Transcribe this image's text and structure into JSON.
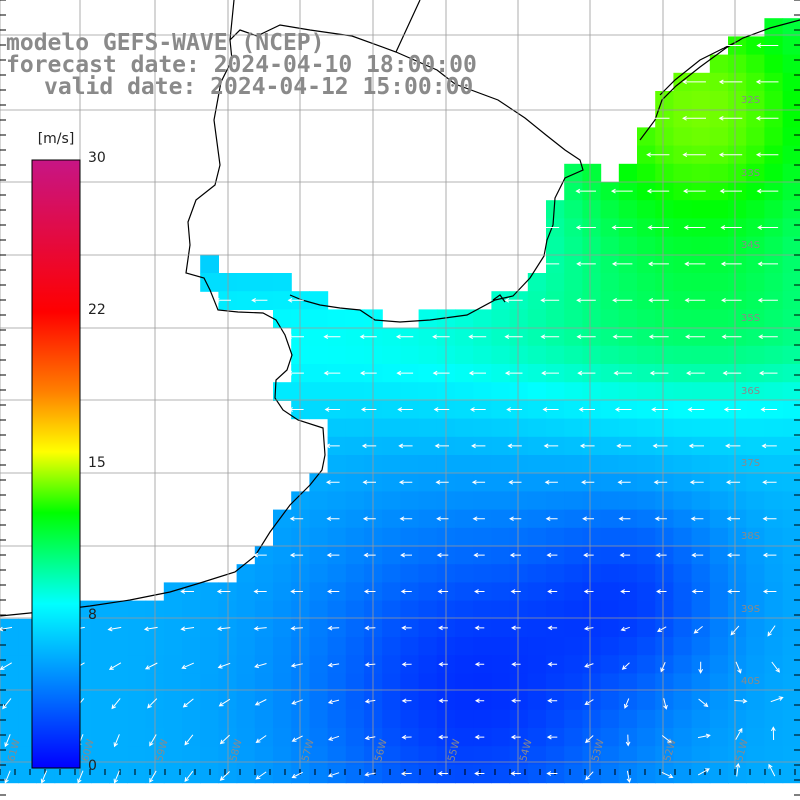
{
  "title": {
    "line1": "modelo GEFS-WAVE (NCEP)",
    "line2": "forecast date: 2024-04-10 18:00:00",
    "line3": "valid date: 2024-04-12 15:00:00"
  },
  "colorbar": {
    "unit": "[m/s]",
    "ticks": [
      "30",
      "22",
      "15",
      "8",
      "0"
    ],
    "tick_values": [
      30,
      22,
      15,
      8,
      0
    ],
    "range": [
      0,
      30
    ],
    "colors": [
      "#0000ff",
      "#00ffff",
      "#00ff00",
      "#ffff00",
      "#ff7f00",
      "#ff0000",
      "#c71585"
    ]
  },
  "map": {
    "lat_labels": [
      "32S",
      "33S",
      "34S",
      "35S",
      "36S",
      "37S",
      "38S",
      "39S",
      "40S"
    ],
    "lon_labels": [
      "61W",
      "60W",
      "59W",
      "58W",
      "57W",
      "56W",
      "55W",
      "54W",
      "53W",
      "52W",
      "51W"
    ],
    "land_color": "#ffffff",
    "coast_color": "#000000",
    "grid_color": "#9a9a9a",
    "wind_direction": "mostly westward flow; northward/northeastward in south-east corner",
    "max_wind_area": "north-east coast near 32S-34S (green, ~14 m/s)",
    "min_wind_area": "offshore 37S-41S (deep blue, ~1-3 m/s)"
  }
}
